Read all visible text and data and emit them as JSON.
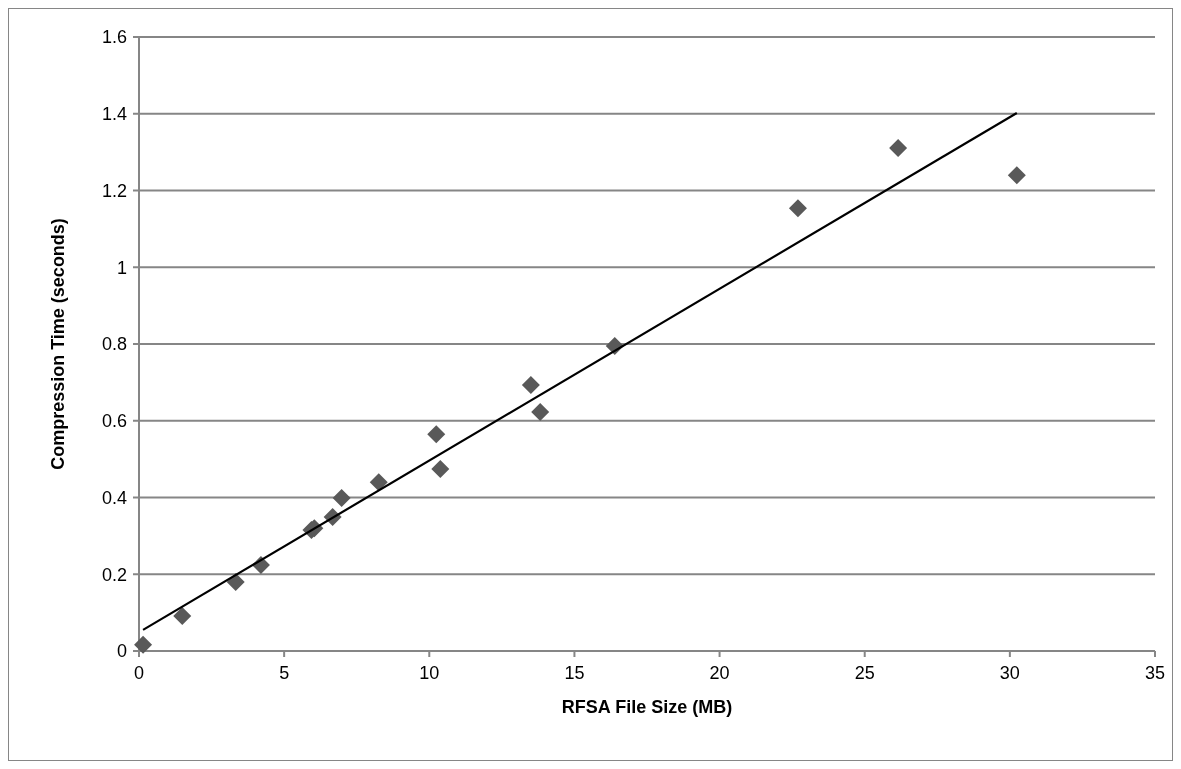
{
  "chart_data": {
    "type": "scatter",
    "xlabel": "RFSA File Size (MB)",
    "ylabel": "Compression Time (seconds)",
    "xlim": [
      0,
      35
    ],
    "xticks": [
      0,
      5,
      10,
      15,
      20,
      25,
      30,
      35
    ],
    "ylim": [
      0,
      1.6
    ],
    "yticks": [
      0,
      0.2,
      0.4,
      0.6,
      0.8,
      1,
      1.2,
      1.4,
      1.6
    ],
    "grid": "y",
    "series": [
      {
        "color": "#595959",
        "marker": "diamond",
        "x": [
          0.14,
          1.49,
          3.33,
          4.2,
          5.94,
          6.04,
          6.67,
          6.98,
          8.26,
          10.24,
          10.38,
          13.5,
          13.82,
          16.39,
          22.7,
          26.15,
          30.24
        ],
        "values": [
          0.016,
          0.091,
          0.18,
          0.224,
          0.315,
          0.32,
          0.349,
          0.399,
          0.44,
          0.565,
          0.474,
          0.693,
          0.623,
          0.795,
          1.154,
          1.311,
          1.24
        ]
      },
      {
        "type": "line",
        "color": "#000000",
        "marker": "none",
        "x": [
          0.14,
          30.24
        ],
        "values": [
          0.055,
          1.402
        ]
      }
    ]
  }
}
